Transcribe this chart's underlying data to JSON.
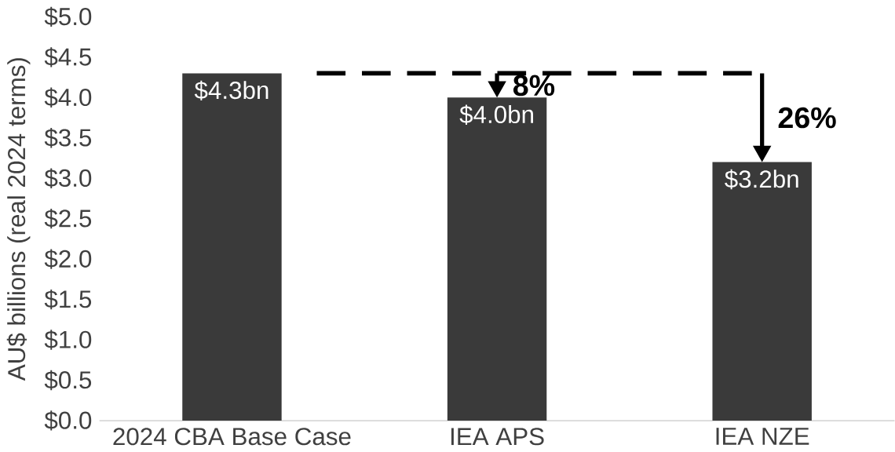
{
  "chart_data": {
    "type": "bar",
    "ylabel": "AU$ billions (real 2024 terms)",
    "categories": [
      "2024 CBA Base Case",
      "IEA APS",
      "IEA NZE"
    ],
    "values": [
      4.3,
      4.0,
      3.2
    ],
    "value_labels": [
      "$4.3bn",
      "$4.0bn",
      "$3.2bn"
    ],
    "color": "#3a3a3a",
    "ylim": [
      0,
      5
    ],
    "yticks": [
      {
        "value": 0,
        "label": "$0.0"
      },
      {
        "value": 0.5,
        "label": "$0.5"
      },
      {
        "value": 1,
        "label": "$1.0"
      },
      {
        "value": 1.5,
        "label": "$1.5"
      },
      {
        "value": 2,
        "label": "$2.0"
      },
      {
        "value": 2.5,
        "label": "$2.5"
      },
      {
        "value": 3,
        "label": "$3.0"
      },
      {
        "value": 3.5,
        "label": "$3.5"
      },
      {
        "value": 4,
        "label": "$4.0"
      },
      {
        "value": 4.5,
        "label": "$4.5"
      },
      {
        "value": 5,
        "label": "$5.0"
      }
    ],
    "ref_lines": [
      {
        "axis": "y",
        "value": 4.3,
        "line_style": "dashed",
        "color": "#000000"
      }
    ],
    "annotations": [
      {
        "text": "8%",
        "x": "IEA APS",
        "y": 4.0
      },
      {
        "text": "26%",
        "x": "IEA NZE",
        "y": 3.2
      }
    ],
    "grid": false
  }
}
